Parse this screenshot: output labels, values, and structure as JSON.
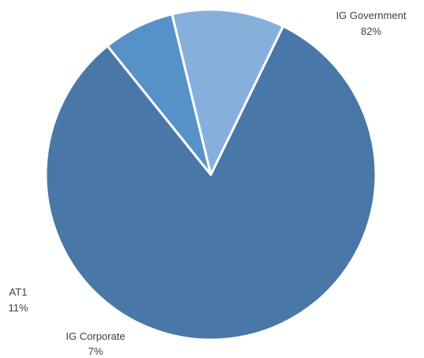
{
  "chart_data": {
    "type": "pie",
    "slices": [
      {
        "name": "IG Government",
        "value": 82,
        "label": "82%",
        "color": "#4877a8"
      },
      {
        "name": "IG Corporate",
        "value": 7,
        "label": "7%",
        "color": "#5691c8"
      },
      {
        "name": "AT1",
        "value": 11,
        "label": "11%",
        "color": "#87afdc"
      }
    ],
    "legend": "none"
  }
}
